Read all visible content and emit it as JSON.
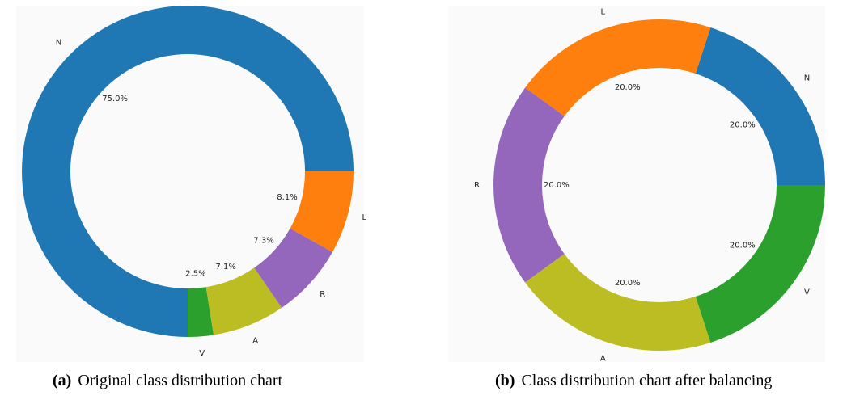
{
  "chart_data": [
    {
      "type": "pie",
      "style": "donut",
      "categories": [
        "N",
        "V",
        "A",
        "R",
        "L"
      ],
      "values": [
        75.0,
        2.5,
        7.1,
        7.3,
        8.1
      ],
      "value_labels": [
        "75.0%",
        "2.5%",
        "7.1%",
        "7.3%",
        "8.1%"
      ],
      "colors": [
        "#1f77b4",
        "#2ca02c",
        "#bcbd22",
        "#9467bd",
        "#ff7f0e"
      ],
      "caption_tag": "(a)",
      "caption_text": "Original class distribution chart"
    },
    {
      "type": "pie",
      "style": "donut",
      "categories": [
        "N",
        "L",
        "R",
        "A",
        "V"
      ],
      "values": [
        20.0,
        20.0,
        20.0,
        20.0,
        20.0
      ],
      "value_labels": [
        "20.0%",
        "20.0%",
        "20.0%",
        "20.0%",
        "20.0%"
      ],
      "colors": [
        "#1f77b4",
        "#ff7f0e",
        "#9467bd",
        "#bcbd22",
        "#2ca02c"
      ],
      "caption_tag": "(b)",
      "caption_text": "Class distribution chart after balancing"
    }
  ]
}
